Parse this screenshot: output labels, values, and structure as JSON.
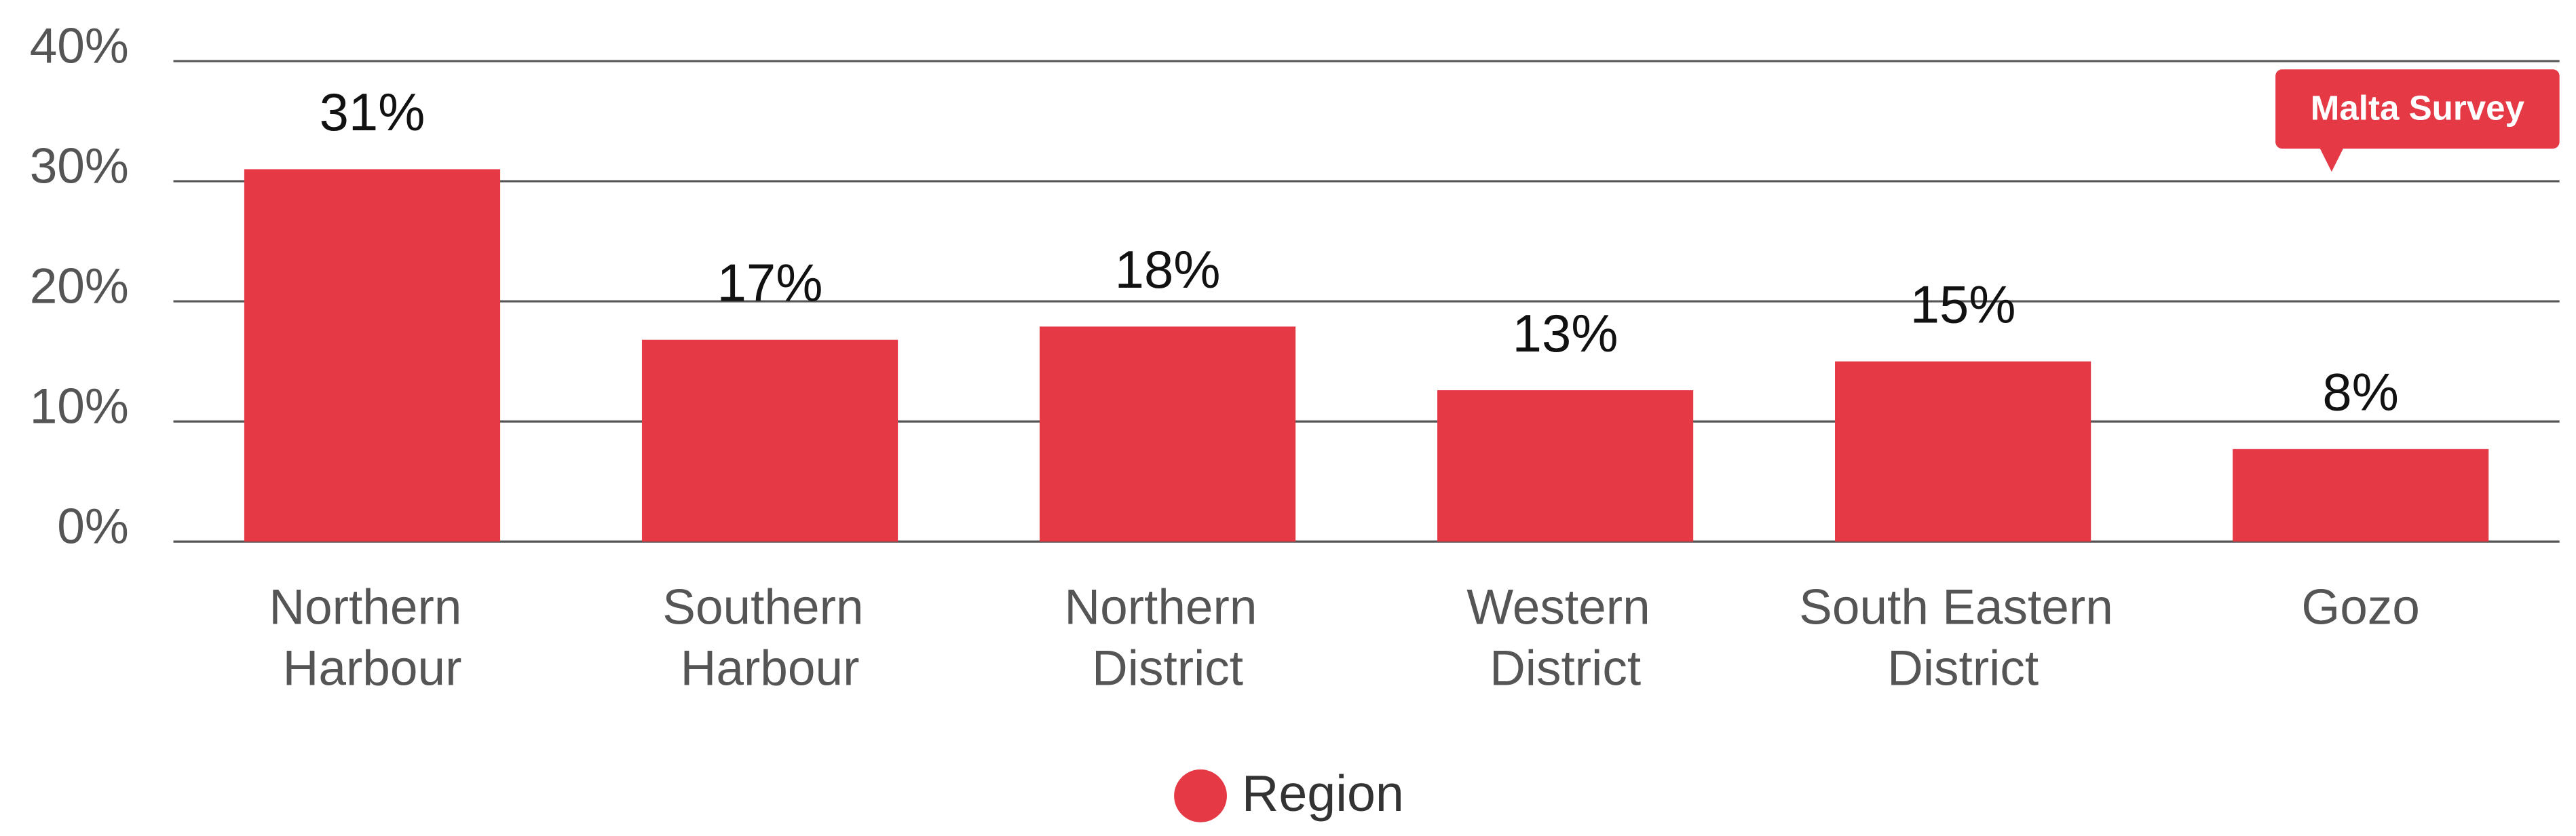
{
  "chart_data": {
    "type": "bar",
    "categories": [
      "Northern Harbour",
      "Southern Harbour",
      "Northern District",
      "Western District",
      "South Eastern District",
      "Gozo"
    ],
    "series": [
      {
        "name": "Region",
        "color": "#e63946",
        "values": [
          31,
          16.8,
          17.9,
          12.6,
          15,
          7.7
        ],
        "value_labels": [
          "31%",
          "17%",
          "18%",
          "13%",
          "15%",
          "8%"
        ]
      }
    ],
    "ylim": [
      0,
      40
    ],
    "yticks": [
      {
        "value": 0,
        "label": "0%"
      },
      {
        "value": 10,
        "label": "10%"
      },
      {
        "value": 20,
        "label": "20%"
      },
      {
        "value": 30,
        "label": "30%"
      },
      {
        "value": 40,
        "label": "40%"
      }
    ],
    "grid": true,
    "legend": "bottom",
    "annotation": "Malta Survey"
  }
}
